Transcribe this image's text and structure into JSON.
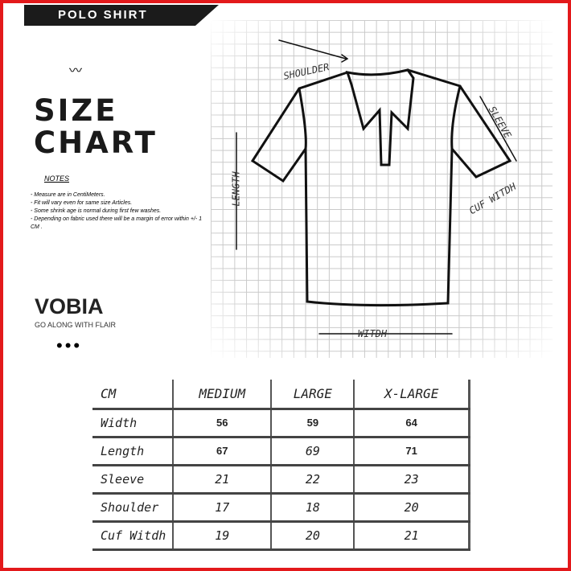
{
  "banner": {
    "title": "POLO SHIRT"
  },
  "heading": {
    "line1": "SIZE",
    "line2": "CHART"
  },
  "notes": {
    "title": "NOTES",
    "items": [
      "- Measure are in CentiMeters.",
      "- Fit will vary even for same size Articles.",
      "- Some shrink age is normal during first few washes.",
      "- Depending on fabric used there will be a margin of error within +/- 1 CM ."
    ]
  },
  "brand": {
    "name": "VOBIA",
    "tagline": "GO ALONG WITH FLAIR",
    "dots": "•••"
  },
  "diagram": {
    "shoulder": "SHOULDER",
    "sleeve": "SLEEVE",
    "length": "LENGTH",
    "cuff": "CUF WITDH",
    "width": "WITDH"
  },
  "colors": {
    "frame": "#e3191b",
    "banner": "#1b1b1b"
  },
  "table": {
    "headers": [
      "CM",
      "MEDIUM",
      "LARGE",
      "X-LARGE"
    ],
    "rows": [
      {
        "label": "Width",
        "values": [
          "56",
          "59",
          "64"
        ]
      },
      {
        "label": "Length",
        "values": [
          "67",
          "69",
          "71"
        ]
      },
      {
        "label": "Sleeve",
        "values": [
          "21",
          "22",
          "23"
        ]
      },
      {
        "label": "Shoulder",
        "values": [
          "17",
          "18",
          "20"
        ]
      },
      {
        "label": "Cuf Witdh",
        "values": [
          "19",
          "20",
          "21"
        ]
      }
    ]
  }
}
